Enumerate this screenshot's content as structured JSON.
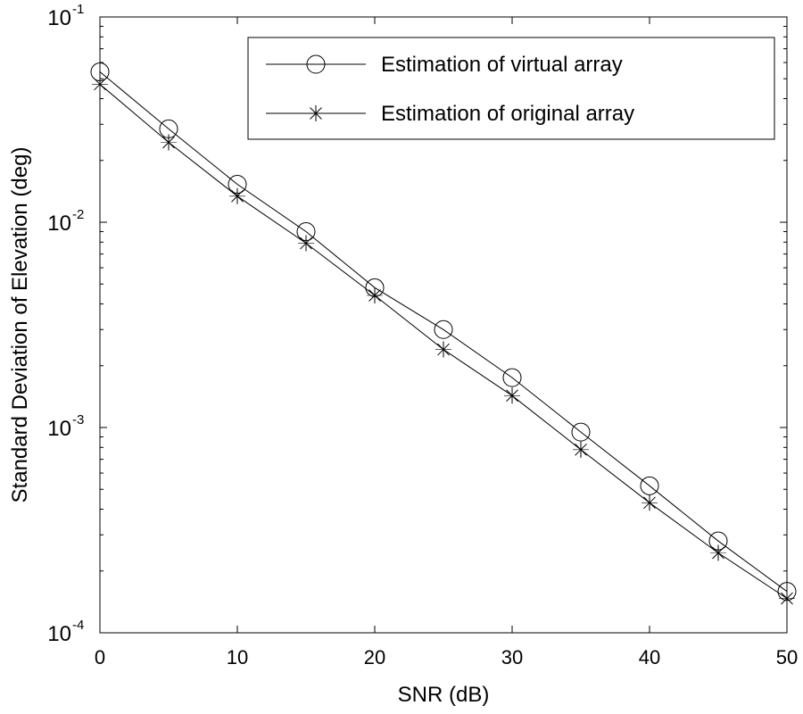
{
  "chart_data": {
    "type": "line",
    "xlabel": "SNR (dB)",
    "ylabel": "Standard Deviation of Elevation (deg)",
    "xlim": [
      0,
      50
    ],
    "ylim": [
      0.0001,
      0.1
    ],
    "yscale": "log",
    "grid": false,
    "legend_position": "top-right",
    "x_ticks": [
      0,
      10,
      20,
      30,
      40,
      50
    ],
    "x_tick_labels": [
      "0",
      "10",
      "20",
      "30",
      "40",
      "50"
    ],
    "y_ticks": [
      {
        "value": 0.1,
        "base": "10",
        "exp": "-1"
      },
      {
        "value": 0.01,
        "base": "10",
        "exp": "-2"
      },
      {
        "value": 0.001,
        "base": "10",
        "exp": "-3"
      },
      {
        "value": 0.0001,
        "base": "10",
        "exp": "-4"
      }
    ],
    "x": [
      0,
      5,
      10,
      15,
      20,
      25,
      30,
      35,
      40,
      45,
      50
    ],
    "series": [
      {
        "name": "Estimation of virtual array",
        "marker": "circle",
        "color": "#000000",
        "values": [
          0.054,
          0.0285,
          0.0153,
          0.009,
          0.0048,
          0.003,
          0.00175,
          0.00095,
          0.00052,
          0.00028,
          0.000159
        ]
      },
      {
        "name": "Estimation of original array",
        "marker": "asterisk",
        "color": "#000000",
        "values": [
          0.047,
          0.0245,
          0.0134,
          0.0079,
          0.0044,
          0.0024,
          0.00143,
          0.00078,
          0.00043,
          0.000245,
          0.000147
        ]
      }
    ]
  }
}
